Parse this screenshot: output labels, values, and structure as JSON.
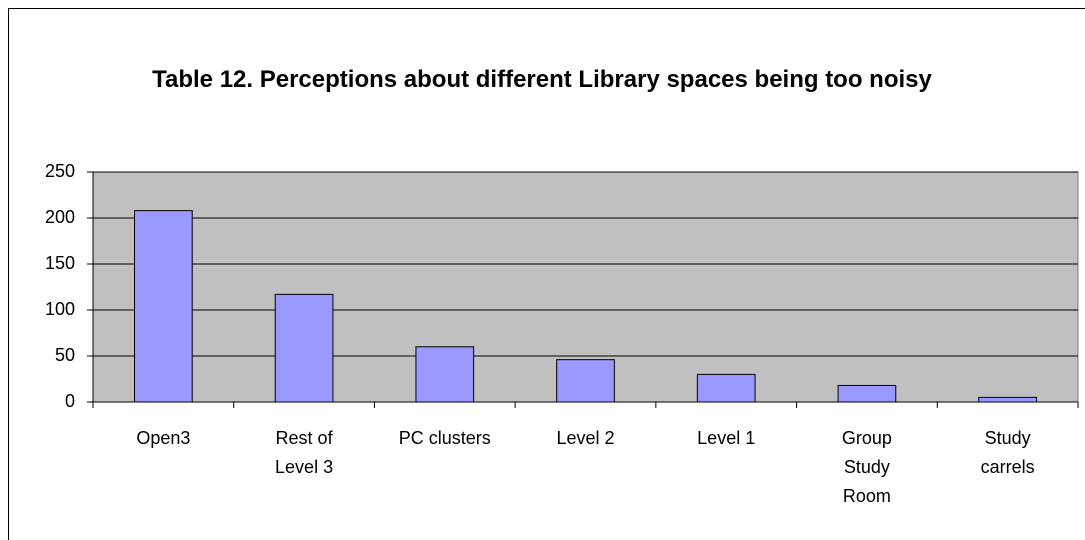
{
  "chart_data": {
    "type": "bar",
    "title": "Table 12. Perceptions about different Library spaces being too noisy",
    "categories": [
      "Open3",
      "Rest of Level 3",
      "PC clusters",
      "Level 2",
      "Level 1",
      "Group Study Room",
      "Study carrels"
    ],
    "values": [
      208,
      117,
      60,
      46,
      30,
      18,
      5
    ],
    "color": "#9999ff",
    "ylim": [
      0,
      250
    ],
    "yticks": [
      0,
      50,
      100,
      150,
      200,
      250
    ],
    "grid": true
  }
}
